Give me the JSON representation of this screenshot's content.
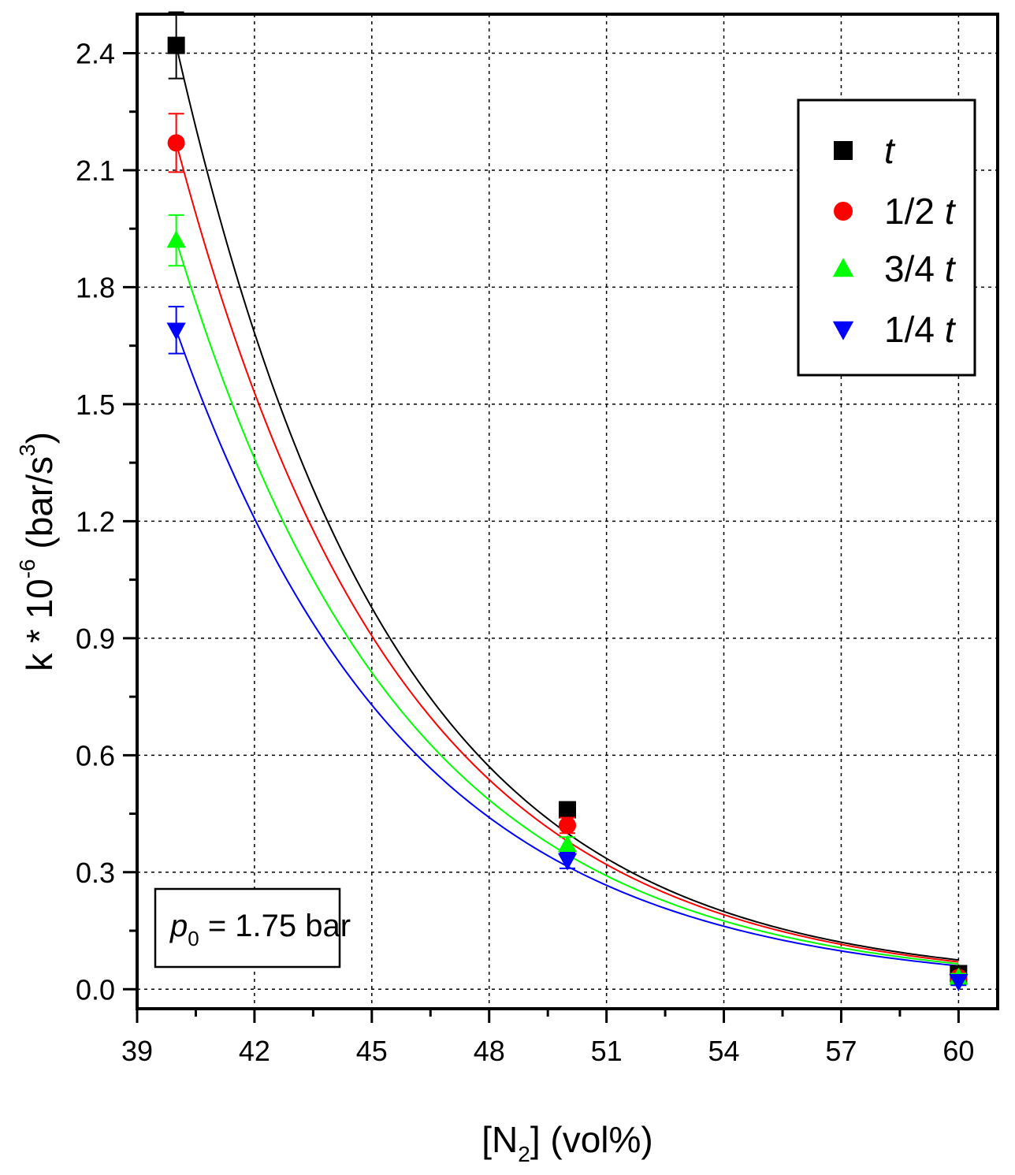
{
  "chart_data": {
    "type": "scatter",
    "xlabel": "[N2] (vol%)",
    "xlabel_parts": {
      "pre": "[N",
      "sub": "2",
      "post": "] (vol%)"
    },
    "ylabel": "k * 10^-6 (bar/s^3)",
    "ylabel_parts": {
      "pre": "k * 10",
      "sup1": "-6",
      "mid": " (bar/s",
      "sup2": "3",
      "post": ")"
    },
    "xlim": [
      39,
      61
    ],
    "ylim": [
      -0.05,
      2.5
    ],
    "xticks": [
      39,
      42,
      45,
      48,
      51,
      54,
      57,
      60
    ],
    "xtick_labels": [
      "39",
      "42",
      "45",
      "48",
      "51",
      "54",
      "57",
      "60"
    ],
    "yticks": [
      0.0,
      0.3,
      0.6,
      0.9,
      1.2,
      1.5,
      1.8,
      2.1,
      2.4
    ],
    "ytick_labels": [
      "0.0",
      "0.3",
      "0.6",
      "0.9",
      "1.2",
      "1.5",
      "1.8",
      "2.1",
      "2.4"
    ],
    "grid": true,
    "legend_position": "top-right",
    "series": [
      {
        "name": "t",
        "label_num": "",
        "label_var": "t",
        "marker": "square",
        "color": "#000000",
        "x": [
          40,
          50,
          60
        ],
        "y": [
          2.42,
          0.46,
          0.04
        ],
        "err": [
          0.085,
          0.02,
          0.01
        ],
        "fit": {
          "x0": 40,
          "y0": 2.42,
          "x1": 50,
          "y1": 0.4,
          "x2": 60,
          "y2": 0.075
        }
      },
      {
        "name": "1/2 t",
        "label_num": "1/2 ",
        "label_var": "t",
        "marker": "circle",
        "color": "#ff0000",
        "x": [
          40,
          50,
          60
        ],
        "y": [
          2.17,
          0.42,
          0.03
        ],
        "err": [
          0.075,
          0.02,
          0.01
        ],
        "fit": {
          "x0": 40,
          "y0": 2.17,
          "x1": 50,
          "y1": 0.38,
          "x2": 60,
          "y2": 0.07
        }
      },
      {
        "name": "3/4 t",
        "label_num": "3/4 ",
        "label_var": "t",
        "marker": "triangle-up",
        "color": "#00ff00",
        "x": [
          40,
          50,
          60
        ],
        "y": [
          1.92,
          0.37,
          0.03
        ],
        "err": [
          0.065,
          0.02,
          0.01
        ],
        "fit": {
          "x0": 40,
          "y0": 1.92,
          "x1": 50,
          "y1": 0.345,
          "x2": 60,
          "y2": 0.065
        }
      },
      {
        "name": "1/4 t",
        "label_num": "1/4 ",
        "label_var": "t",
        "marker": "triangle-down",
        "color": "#0000ff",
        "x": [
          40,
          50,
          60
        ],
        "y": [
          1.69,
          0.33,
          0.02
        ],
        "err": [
          0.06,
          0.02,
          0.01
        ],
        "fit": {
          "x0": 40,
          "y0": 1.69,
          "x1": 50,
          "y1": 0.315,
          "x2": 60,
          "y2": 0.06
        }
      }
    ],
    "annotation": {
      "var": "p",
      "sub": "0",
      "rest": " = 1.75 bar"
    }
  }
}
